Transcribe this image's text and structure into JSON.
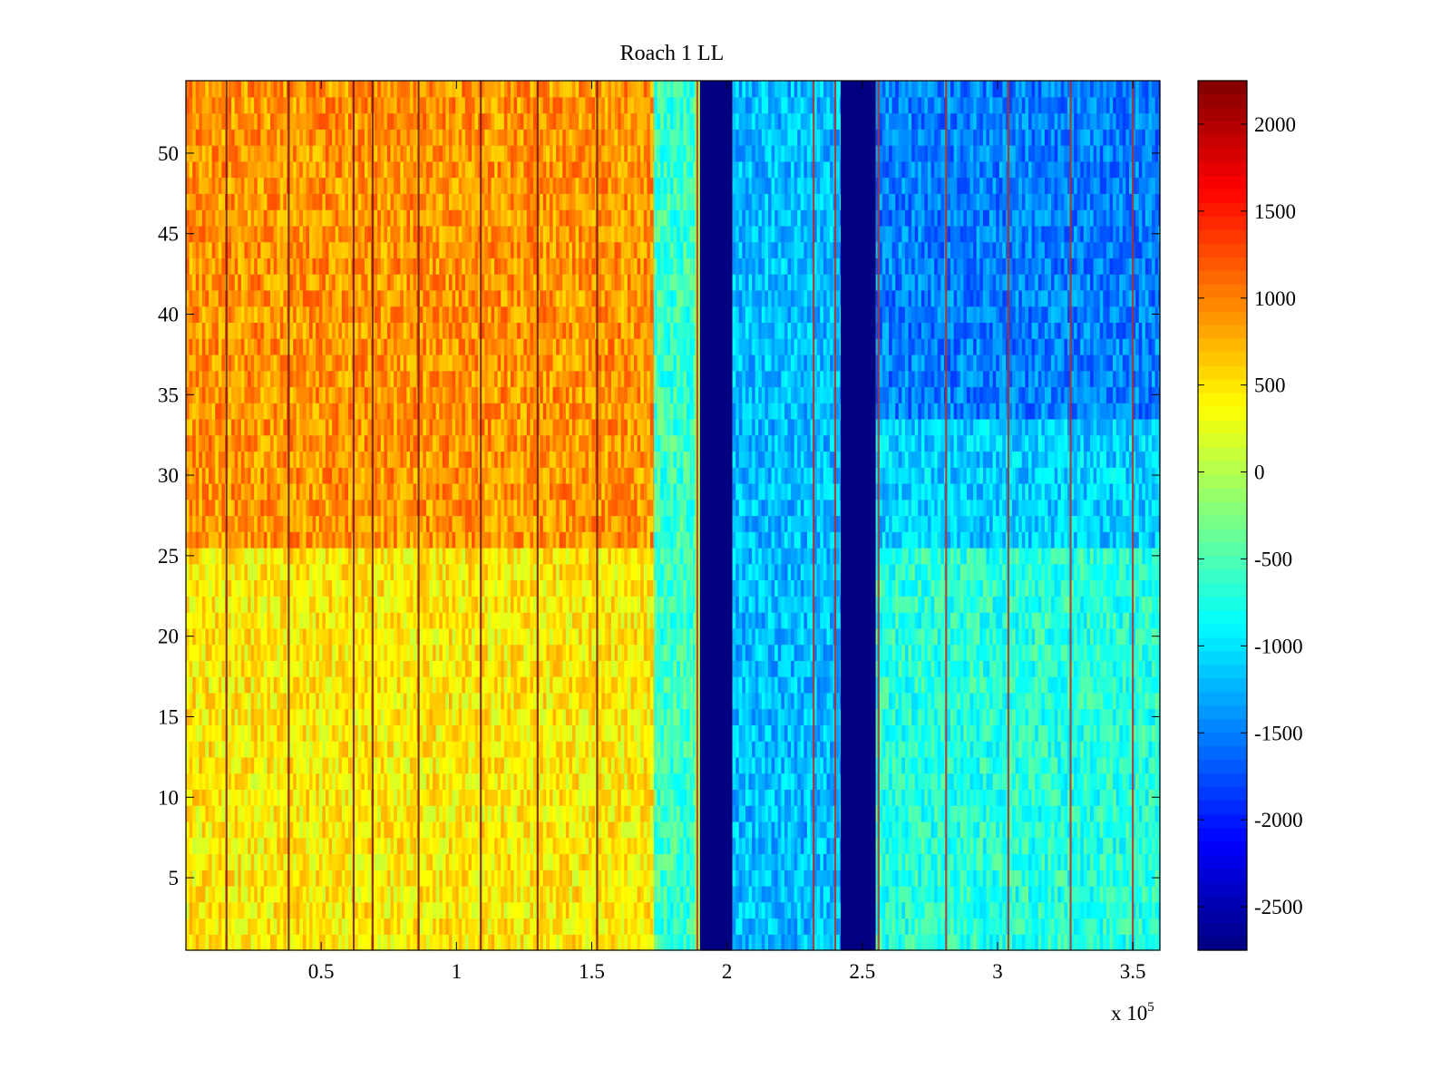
{
  "chart_data": {
    "type": "heatmap",
    "title": "Roach 1 LL",
    "xlabel": "",
    "ylabel": "",
    "x_exponent_label": "x 10",
    "x_exponent_power": "5",
    "xlim": [
      0,
      3.6
    ],
    "ylim": [
      0.5,
      54.5
    ],
    "x_ticks": [
      0.5,
      1,
      1.5,
      2,
      2.5,
      3,
      3.5
    ],
    "x_tick_labels": [
      "0.5",
      "1",
      "1.5",
      "2",
      "2.5",
      "3",
      "3.5"
    ],
    "y_ticks": [
      5,
      10,
      15,
      20,
      25,
      30,
      35,
      40,
      45,
      50
    ],
    "y_tick_labels": [
      "5",
      "10",
      "15",
      "20",
      "25",
      "30",
      "35",
      "40",
      "45",
      "50"
    ],
    "colorbar": {
      "colormap": "jet",
      "range": [
        -2750,
        2250
      ],
      "ticks": [
        2000,
        1500,
        1000,
        500,
        0,
        -500,
        -1000,
        -1500,
        -2000,
        -2500
      ],
      "tick_labels": [
        "2000",
        "1500",
        "1000",
        "500",
        "0",
        "-500",
        "-1000",
        "-1500",
        "-2000",
        "-2500"
      ]
    },
    "rows": 54,
    "regions": [
      {
        "x_range": [
          0,
          1.73
        ],
        "value_rows_26_54": 900,
        "value_rows_1_25": 450
      },
      {
        "x_range": [
          1.73,
          1.88
        ],
        "value": -600
      },
      {
        "x_range": [
          1.9,
          2.02
        ],
        "value": -2750
      },
      {
        "x_range": [
          2.02,
          2.42
        ],
        "value": -1200
      },
      {
        "x_range": [
          2.42,
          2.55
        ],
        "value": -2750
      },
      {
        "x_range": [
          2.55,
          3.6
        ],
        "value_rows_34_54": -1500,
        "value_rows_26_33": -1100,
        "value_rows_1_25": -700
      }
    ],
    "vertical_lines_x": [
      0.15,
      0.38,
      0.62,
      0.69,
      0.86,
      1.09,
      1.3,
      1.52,
      1.89,
      2.32,
      2.4,
      2.56,
      2.81,
      3.04,
      3.27,
      3.5
    ]
  }
}
